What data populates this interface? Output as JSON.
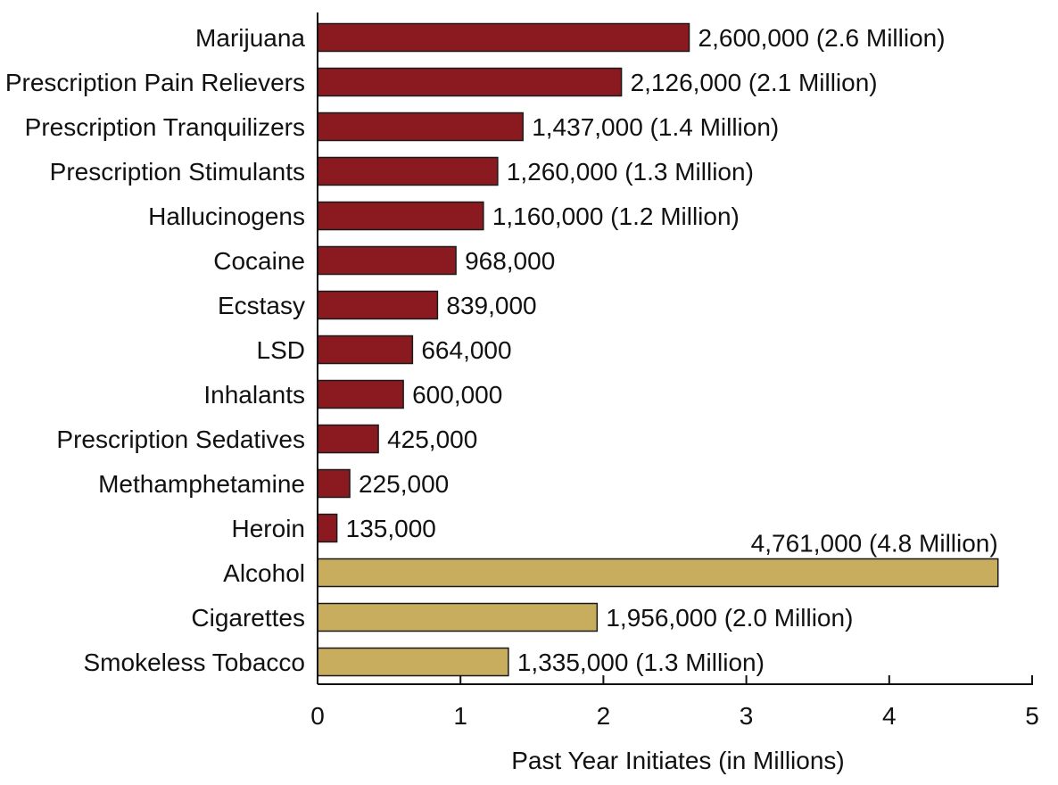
{
  "chart_data": {
    "type": "bar",
    "orientation": "horizontal",
    "title": "",
    "xlabel": "Past Year Initiates (in Millions)",
    "ylabel": "",
    "xlim": [
      0,
      5
    ],
    "xticks": [
      "0",
      "1",
      "2",
      "3",
      "4",
      "5"
    ],
    "grid": false,
    "colors": {
      "illicit": "#8a1a1f",
      "legal": "#c8ad5e",
      "border": "#1a1a1a"
    },
    "bars": [
      {
        "category": "Marijuana",
        "value": 2.6,
        "label": "2,600,000 (2.6 Million)",
        "group": "illicit"
      },
      {
        "category": "Prescription Pain Relievers",
        "value": 2.126,
        "label": "2,126,000 (2.1 Million)",
        "group": "illicit"
      },
      {
        "category": "Prescription Tranquilizers",
        "value": 1.437,
        "label": "1,437,000 (1.4 Million)",
        "group": "illicit"
      },
      {
        "category": "Prescription Stimulants",
        "value": 1.26,
        "label": "1,260,000 (1.3 Million)",
        "group": "illicit"
      },
      {
        "category": "Hallucinogens",
        "value": 1.16,
        "label": "1,160,000 (1.2 Million)",
        "group": "illicit"
      },
      {
        "category": "Cocaine",
        "value": 0.968,
        "label": "968,000",
        "group": "illicit"
      },
      {
        "category": "Ecstasy",
        "value": 0.839,
        "label": "839,000",
        "group": "illicit"
      },
      {
        "category": "LSD",
        "value": 0.664,
        "label": "664,000",
        "group": "illicit"
      },
      {
        "category": "Inhalants",
        "value": 0.6,
        "label": "600,000",
        "group": "illicit"
      },
      {
        "category": "Prescription Sedatives",
        "value": 0.425,
        "label": "425,000",
        "group": "illicit"
      },
      {
        "category": "Methamphetamine",
        "value": 0.225,
        "label": "225,000",
        "group": "illicit"
      },
      {
        "category": "Heroin",
        "value": 0.135,
        "label": "135,000",
        "group": "illicit"
      },
      {
        "category": "Alcohol",
        "value": 4.761,
        "label": "4,761,000 (4.8 Million)",
        "group": "legal",
        "label_position": "above"
      },
      {
        "category": "Cigarettes",
        "value": 1.956,
        "label": "1,956,000 (2.0 Million)",
        "group": "legal"
      },
      {
        "category": "Smokeless Tobacco",
        "value": 1.335,
        "label": "1,335,000 (1.3 Million)",
        "group": "legal"
      }
    ]
  }
}
